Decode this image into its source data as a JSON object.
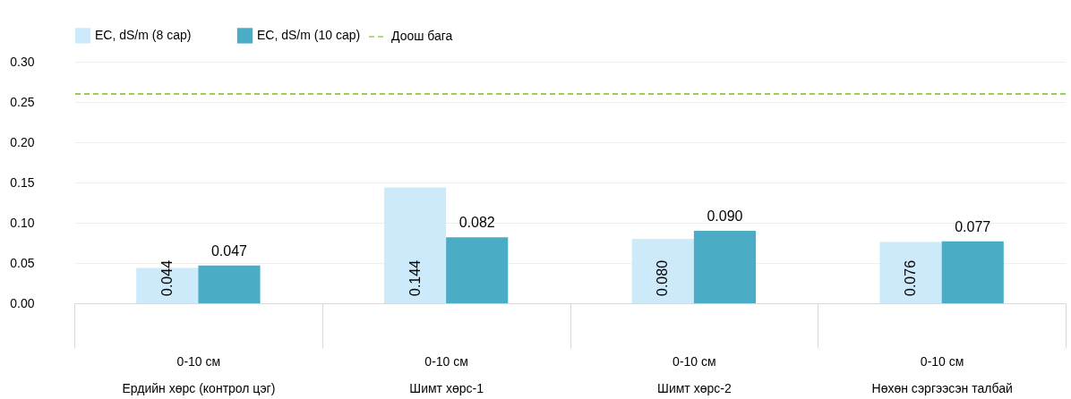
{
  "chart_data": {
    "type": "bar",
    "categories": [
      "0-10 см\nЕрдийн хөрс (контрол цэг)",
      "0-10 см\nШимт хөрс-1",
      "0-10 см\nШимт хөрс-2",
      "0-10 см\nНөхөн сэргээсэн талбай"
    ],
    "series": [
      {
        "name": "EC, dS/m (8 сар)",
        "color": "#cdeafa",
        "values": [
          0.044,
          0.144,
          0.08,
          0.076
        ],
        "value_labels": [
          "0.044",
          "0.144",
          "0.080",
          "0.076"
        ]
      },
      {
        "name": "EC, dS/m (10 сар)",
        "color": "#4bacc6",
        "values": [
          0.047,
          0.082,
          0.09,
          0.077
        ],
        "value_labels": [
          "0.047",
          "0.082",
          "0.090",
          "0.077"
        ]
      }
    ],
    "ylim": [
      0,
      0.3
    ],
    "yticks": [
      {
        "value": 0,
        "label": "0.00"
      },
      {
        "value": 0.05,
        "label": "0.05"
      },
      {
        "value": 0.1,
        "label": "0.10"
      },
      {
        "value": 0.15,
        "label": "0.15"
      },
      {
        "value": 0.2,
        "label": "0.20"
      },
      {
        "value": 0.25,
        "label": "0.25"
      },
      {
        "value": 0.3,
        "label": "0.30"
      }
    ],
    "ref_lines": [
      {
        "axis": "y",
        "value": 0.26,
        "label": "Доош бага",
        "color": "#92d050",
        "line_style": "dashed"
      }
    ],
    "grid": "y",
    "legend": "top"
  }
}
